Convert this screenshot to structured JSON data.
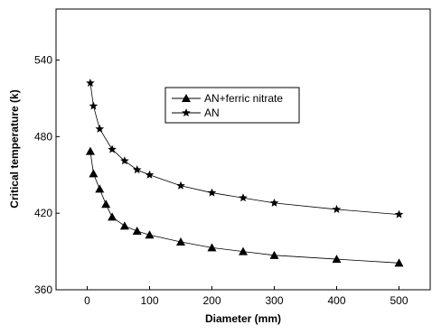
{
  "chart_data": {
    "type": "line",
    "x_label": "Diameter (mm)",
    "y_label": "Critical temperature (k)",
    "xlim": [
      -50,
      550
    ],
    "xticks": [
      0,
      100,
      200,
      300,
      400,
      500
    ],
    "ylim": [
      360,
      580
    ],
    "yticks": [
      360,
      420,
      480,
      540
    ],
    "legend": "upper center",
    "series": [
      {
        "name": "AN+ferric nitrate",
        "color": "#000000",
        "marker": "triangle",
        "x": [
          5,
          10,
          20,
          30,
          40,
          60,
          80,
          100,
          150,
          200,
          250,
          300,
          400,
          500
        ],
        "values": [
          468.5,
          451,
          439,
          427,
          417,
          410,
          406,
          403,
          397.5,
          393,
          390,
          387,
          384,
          381
        ]
      },
      {
        "name": "AN",
        "color": "#000000",
        "marker": "star",
        "x": [
          5,
          10,
          20,
          40,
          60,
          80,
          100,
          150,
          200,
          250,
          300,
          400,
          500
        ],
        "values": [
          522,
          504,
          486,
          470,
          461,
          454,
          450,
          441.5,
          436,
          432,
          428,
          423,
          419
        ]
      }
    ]
  }
}
